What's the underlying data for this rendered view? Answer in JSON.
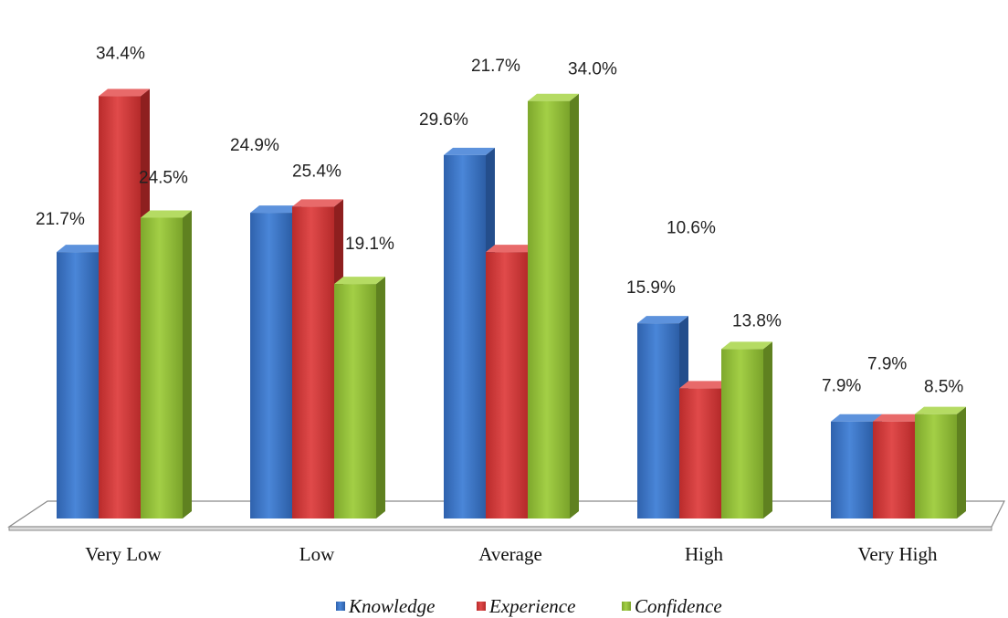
{
  "chart_data": {
    "type": "bar",
    "categories": [
      "Very Low",
      "Low",
      "Average",
      "High",
      "Very High"
    ],
    "series": [
      {
        "name": "Knowledge",
        "values": [
          21.7,
          24.9,
          29.6,
          15.9,
          7.9
        ],
        "labels": [
          "21.7%",
          "24.9%",
          "29.6%",
          "15.9%",
          "7.9%"
        ]
      },
      {
        "name": "Experience",
        "values": [
          34.4,
          25.4,
          21.7,
          10.6,
          7.9
        ],
        "labels": [
          "34.4%",
          "25.4%",
          "21.7%",
          "10.6%",
          "7.9%"
        ]
      },
      {
        "name": "Confidence",
        "values": [
          24.5,
          19.1,
          34.0,
          13.8,
          8.5
        ],
        "labels": [
          "24.5%",
          "19.1%",
          "34.0%",
          "13.8%",
          "8.5%"
        ]
      }
    ],
    "ylim": [
      0,
      40
    ],
    "legend_position": "bottom",
    "grid": false,
    "colors": {
      "Knowledge": "#3b73c4",
      "Experience": "#d23a3a",
      "Confidence": "#93bf3a"
    }
  }
}
